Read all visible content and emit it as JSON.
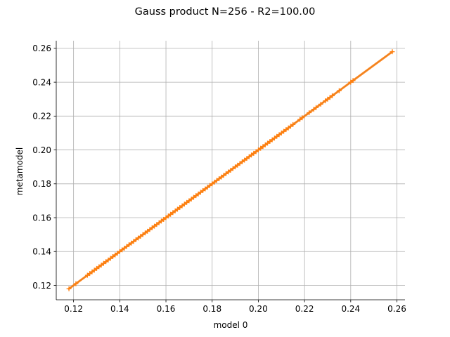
{
  "chart_data": {
    "type": "scatter",
    "title": "Gauss product N=256 - R2=100.00",
    "xlabel": "model 0",
    "ylabel": "metamodel",
    "xlim": [
      0.1125,
      0.2635
    ],
    "ylim": [
      0.1115,
      0.2645
    ],
    "xticks": [
      0.12,
      0.14,
      0.16,
      0.18,
      0.2,
      0.22,
      0.24,
      0.26
    ],
    "xtick_labels": [
      "0.12",
      "0.14",
      "0.16",
      "0.18",
      "0.20",
      "0.22",
      "0.24",
      "0.26"
    ],
    "yticks": [
      0.12,
      0.14,
      0.16,
      0.18,
      0.2,
      0.22,
      0.24,
      0.26
    ],
    "ytick_labels": [
      "0.12",
      "0.14",
      "0.16",
      "0.18",
      "0.20",
      "0.22",
      "0.24",
      "0.26"
    ],
    "grid": true,
    "colors": {
      "reference_line": "#1f77b4",
      "points": "#ff7f0e",
      "grid": "#b0b0b0"
    },
    "series": [
      {
        "kind": "line",
        "x": [
          0.118,
          0.258
        ],
        "y": [
          0.118,
          0.258
        ]
      },
      {
        "kind": "scatter",
        "marker": "+",
        "x": [
          0.118,
          0.121,
          0.126,
          0.127,
          0.128,
          0.129,
          0.13,
          0.131,
          0.132,
          0.133,
          0.134,
          0.135,
          0.136,
          0.137,
          0.138,
          0.139,
          0.14,
          0.141,
          0.142,
          0.143,
          0.144,
          0.145,
          0.146,
          0.147,
          0.148,
          0.149,
          0.15,
          0.151,
          0.152,
          0.153,
          0.154,
          0.155,
          0.156,
          0.157,
          0.158,
          0.159,
          0.16,
          0.161,
          0.162,
          0.163,
          0.164,
          0.165,
          0.166,
          0.167,
          0.168,
          0.169,
          0.17,
          0.171,
          0.172,
          0.173,
          0.174,
          0.175,
          0.176,
          0.177,
          0.178,
          0.179,
          0.18,
          0.181,
          0.182,
          0.183,
          0.184,
          0.185,
          0.186,
          0.187,
          0.188,
          0.189,
          0.19,
          0.191,
          0.192,
          0.193,
          0.194,
          0.195,
          0.196,
          0.197,
          0.198,
          0.199,
          0.2,
          0.201,
          0.202,
          0.203,
          0.204,
          0.205,
          0.206,
          0.207,
          0.208,
          0.209,
          0.21,
          0.211,
          0.212,
          0.213,
          0.214,
          0.215,
          0.218,
          0.219,
          0.222,
          0.224,
          0.225,
          0.227,
          0.229,
          0.23,
          0.231,
          0.232,
          0.235,
          0.24,
          0.241,
          0.258
        ],
        "y": [
          0.118,
          0.121,
          0.126,
          0.127,
          0.128,
          0.129,
          0.13,
          0.131,
          0.132,
          0.133,
          0.134,
          0.135,
          0.136,
          0.137,
          0.138,
          0.139,
          0.14,
          0.141,
          0.142,
          0.143,
          0.144,
          0.145,
          0.146,
          0.147,
          0.148,
          0.149,
          0.15,
          0.151,
          0.152,
          0.153,
          0.154,
          0.155,
          0.156,
          0.157,
          0.158,
          0.159,
          0.16,
          0.161,
          0.162,
          0.163,
          0.164,
          0.165,
          0.166,
          0.167,
          0.168,
          0.169,
          0.17,
          0.171,
          0.172,
          0.173,
          0.174,
          0.175,
          0.176,
          0.177,
          0.178,
          0.179,
          0.18,
          0.181,
          0.182,
          0.183,
          0.184,
          0.185,
          0.186,
          0.187,
          0.188,
          0.189,
          0.19,
          0.191,
          0.192,
          0.193,
          0.194,
          0.195,
          0.196,
          0.197,
          0.198,
          0.199,
          0.2,
          0.201,
          0.202,
          0.203,
          0.204,
          0.205,
          0.206,
          0.207,
          0.208,
          0.209,
          0.21,
          0.211,
          0.212,
          0.213,
          0.214,
          0.215,
          0.218,
          0.219,
          0.222,
          0.224,
          0.225,
          0.227,
          0.229,
          0.23,
          0.231,
          0.232,
          0.235,
          0.24,
          0.241,
          0.258
        ]
      }
    ]
  }
}
